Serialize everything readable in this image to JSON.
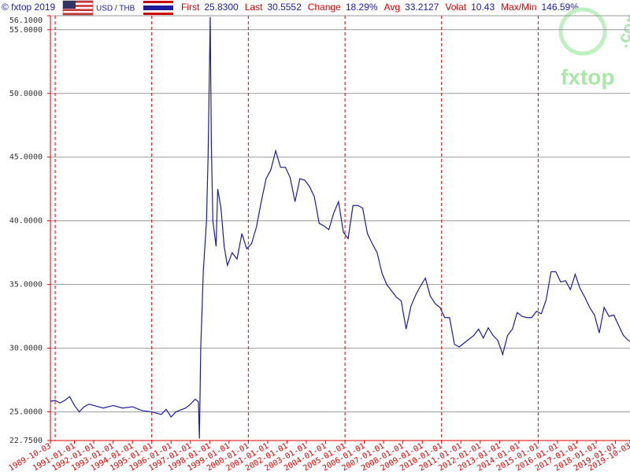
{
  "chart_data": {
    "type": "line",
    "source": "© fxtop 2019",
    "pair": "USD / THB",
    "stats": [
      {
        "label": "First",
        "value": "25.8300"
      },
      {
        "label": "Last",
        "value": "30.5552"
      },
      {
        "label": "Change",
        "value": "18.29%"
      },
      {
        "label": "Avg",
        "value": "33.2127"
      },
      {
        "label": "Volat",
        "value": "10.43"
      },
      {
        "label": "Max/Min",
        "value": "146.59%"
      }
    ],
    "logo": [
      "fxtop",
      ".com"
    ],
    "color": "#1c1c9c",
    "grid": true,
    "xlim": [
      "1989-10-03",
      "2019-10-03"
    ],
    "xticks": [
      "1989-10-03",
      "1991-01-01",
      "1992-01-01",
      "1993-01-01",
      "1994-01-01",
      "1995-01-01",
      "1996-01-01",
      "1997-01-01",
      "1998-01-01",
      "1999-01-01",
      "2000-01-01",
      "2001-01-01",
      "2002-01-01",
      "2003-01-01",
      "2004-01-01",
      "2005-01-01",
      "2006-01-01",
      "2007-01-01",
      "2008-01-01",
      "2009-01-01",
      "2010-01-01",
      "2011-01-01",
      "2012-01-01",
      "2013-01-01",
      "2014-01-01",
      "2015-01-01",
      "2016-01-01",
      "2017-01-01",
      "2018-01-01",
      "2019-01-01",
      "2019-10-03"
    ],
    "ylim": [
      22.75,
      56.1
    ],
    "yticks": [
      {
        "value": 56.1,
        "label": "56.1000"
      },
      {
        "value": 55,
        "label": "55.0000"
      },
      {
        "value": 50,
        "label": "50.0000"
      },
      {
        "value": 45,
        "label": "45.0000"
      },
      {
        "value": 40,
        "label": "40.0000"
      },
      {
        "value": 35,
        "label": "35.0000"
      },
      {
        "value": 30,
        "label": "30.0000"
      },
      {
        "value": 25,
        "label": "25.0000"
      },
      {
        "value": 22.75,
        "label": "22.7500"
      }
    ],
    "x": [
      "1989-10-03",
      "1990-01-01",
      "1990-04-01",
      "1990-07-01",
      "1990-10-01",
      "1991-01-01",
      "1991-04-01",
      "1991-07-01",
      "1991-10-01",
      "1992-01-01",
      "1992-07-01",
      "1993-01-01",
      "1993-07-01",
      "1994-01-01",
      "1994-07-01",
      "1995-01-01",
      "1995-07-01",
      "1995-10-01",
      "1996-01-01",
      "1996-04-01",
      "1996-10-01",
      "1997-01-01",
      "1997-04-01",
      "1997-06-01",
      "1997-06-20",
      "1997-07-15",
      "1997-09-01",
      "1997-11-01",
      "1997-12-01",
      "1998-01-10",
      "1998-02-01",
      "1998-03-01",
      "1998-05-01",
      "1998-06-01",
      "1998-08-01",
      "1998-10-01",
      "1998-12-01",
      "1999-03-01",
      "1999-06-01",
      "1999-09-01",
      "1999-12-01",
      "2000-03-01",
      "2000-06-01",
      "2000-09-01",
      "2000-12-01",
      "2001-03-01",
      "2001-06-01",
      "2001-09-01",
      "2001-12-01",
      "2002-03-01",
      "2002-06-01",
      "2002-09-01",
      "2002-12-01",
      "2003-03-01",
      "2003-06-01",
      "2003-09-01",
      "2003-12-01",
      "2004-03-01",
      "2004-06-01",
      "2004-09-01",
      "2004-12-01",
      "2005-03-01",
      "2005-06-01",
      "2005-09-01",
      "2005-12-01",
      "2006-03-01",
      "2006-06-01",
      "2006-09-01",
      "2006-12-01",
      "2007-03-01",
      "2007-06-01",
      "2007-09-01",
      "2007-12-01",
      "2008-03-01",
      "2008-06-01",
      "2008-09-01",
      "2008-12-01",
      "2009-03-01",
      "2009-06-01",
      "2009-09-01",
      "2009-12-01",
      "2010-03-01",
      "2010-06-01",
      "2010-09-01",
      "2010-12-01",
      "2011-03-01",
      "2011-06-01",
      "2011-09-01",
      "2011-12-01",
      "2012-03-01",
      "2012-06-01",
      "2012-09-01",
      "2012-12-01",
      "2013-03-01",
      "2013-06-01",
      "2013-09-01",
      "2013-12-01",
      "2014-03-01",
      "2014-06-01",
      "2014-09-01",
      "2014-12-01",
      "2015-03-01",
      "2015-06-01",
      "2015-09-01",
      "2015-12-01",
      "2016-03-01",
      "2016-06-01",
      "2016-09-01",
      "2016-12-01",
      "2017-03-01",
      "2017-06-01",
      "2017-09-01",
      "2017-12-01",
      "2018-03-01",
      "2018-06-01",
      "2018-09-01",
      "2018-12-01",
      "2019-03-01",
      "2019-06-01",
      "2019-09-01",
      "2019-10-03"
    ],
    "values": [
      25.83,
      25.9,
      25.7,
      25.9,
      26.2,
      25.5,
      25.0,
      25.4,
      25.6,
      25.5,
      25.3,
      25.5,
      25.3,
      25.4,
      25.1,
      25.0,
      24.8,
      25.2,
      24.6,
      25.0,
      25.3,
      25.6,
      26.0,
      25.8,
      22.9,
      30,
      36,
      40,
      45,
      56.0,
      46,
      40,
      38,
      42.5,
      41,
      38,
      36.5,
      37.5,
      37,
      39,
      37.8,
      38.2,
      39.5,
      41.5,
      43.3,
      44,
      45.5,
      44.2,
      44.2,
      43.4,
      41.5,
      43.3,
      43.2,
      42.7,
      41.9,
      39.8,
      39.6,
      39.3,
      40.6,
      41.5,
      39.1,
      38.6,
      41.2,
      41.2,
      41.0,
      39.0,
      38.2,
      37.5,
      35.9,
      35,
      34.5,
      34,
      33.7,
      31.5,
      33.3,
      34.2,
      34.9,
      35.5,
      34.1,
      33.5,
      33.2,
      32.4,
      32.4,
      30.3,
      30.1,
      30.4,
      30.7,
      31.0,
      31.5,
      30.8,
      31.6,
      31.0,
      30.6,
      29.5,
      31,
      31.5,
      32.8,
      32.5,
      32.4,
      32.4,
      32.9,
      32.7,
      33.8,
      36.0,
      36.0,
      35.2,
      35.3,
      34.6,
      35.8,
      34.7,
      34.0,
      33.2,
      32.6,
      31.2,
      33.2,
      32.5,
      32.6,
      31.8,
      31.0,
      30.6,
      30.56
    ]
  }
}
